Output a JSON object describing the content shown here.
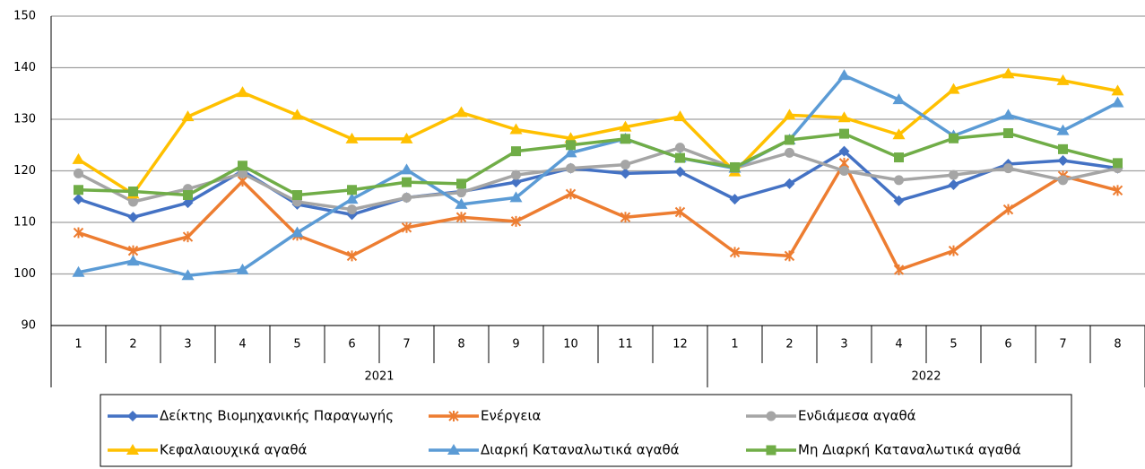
{
  "chart_data": {
    "type": "line",
    "categories": [
      "1",
      "2",
      "3",
      "4",
      "5",
      "6",
      "7",
      "8",
      "9",
      "10",
      "11",
      "12",
      "1",
      "2",
      "3",
      "4",
      "5",
      "6",
      "7",
      "8"
    ],
    "groups": [
      {
        "label": "2021",
        "span": 12
      },
      {
        "label": "2022",
        "span": 8
      }
    ],
    "ylim": [
      90,
      150
    ],
    "yticks": [
      90,
      100,
      110,
      120,
      130,
      140,
      150
    ],
    "grid": true,
    "series": [
      {
        "name": "Δείκτης Βιομηχανικής Παραγωγής",
        "color": "#4472c4",
        "marker": "diamond",
        "values": [
          114.5,
          111,
          113.8,
          120,
          113.5,
          111.5,
          114.8,
          116,
          117.8,
          120.5,
          119.5,
          119.8,
          114.5,
          117.5,
          123.8,
          114.2,
          117.3,
          121.3,
          122,
          120.5
        ]
      },
      {
        "name": "Ενέργεια",
        "color": "#ed7d31",
        "marker": "star",
        "values": [
          108,
          104.5,
          107.2,
          118,
          107.5,
          103.5,
          109,
          111,
          110.2,
          115.5,
          111,
          112,
          104.2,
          103.5,
          121.5,
          100.8,
          104.5,
          112.5,
          119,
          116.2
        ]
      },
      {
        "name": "Ενδιάμεσα αγαθά",
        "color": "#a5a5a5",
        "marker": "circle",
        "values": [
          119.5,
          114,
          116.5,
          119.5,
          114,
          112.5,
          114.8,
          115.8,
          119.2,
          120.5,
          121.2,
          124.5,
          120.5,
          123.5,
          120,
          118.2,
          119.2,
          120.5,
          118.2,
          120.5
        ]
      },
      {
        "name": "Κεφαλαιουχικά αγαθά",
        "color": "#ffc000",
        "marker": "triangle",
        "values": [
          122.2,
          115.5,
          130.5,
          135.2,
          130.8,
          126.2,
          126.2,
          131.3,
          128,
          126.3,
          128.5,
          130.5,
          119.8,
          130.8,
          130.3,
          127,
          135.8,
          138.8,
          137.5,
          135.5
        ]
      },
      {
        "name": "Διαρκή Καταναλωτικά αγαθά",
        "color": "#5b9bd5",
        "marker": "triangle",
        "values": [
          100.3,
          102.5,
          99.7,
          100.8,
          108,
          114.5,
          120.2,
          113.5,
          114.8,
          123.5,
          126.2,
          122.5,
          120.5,
          126,
          138.5,
          133.8,
          126.8,
          130.8,
          127.8,
          133.2
        ]
      },
      {
        "name": "Μη Διαρκή Καταναλωτικά αγαθά",
        "color": "#70ad47",
        "marker": "square",
        "values": [
          116.3,
          116,
          115.3,
          121,
          115.3,
          116.3,
          117.8,
          117.5,
          123.8,
          125,
          126.2,
          122.5,
          120.7,
          126,
          127.2,
          122.6,
          126.3,
          127.3,
          124.2,
          121.5
        ]
      }
    ]
  }
}
